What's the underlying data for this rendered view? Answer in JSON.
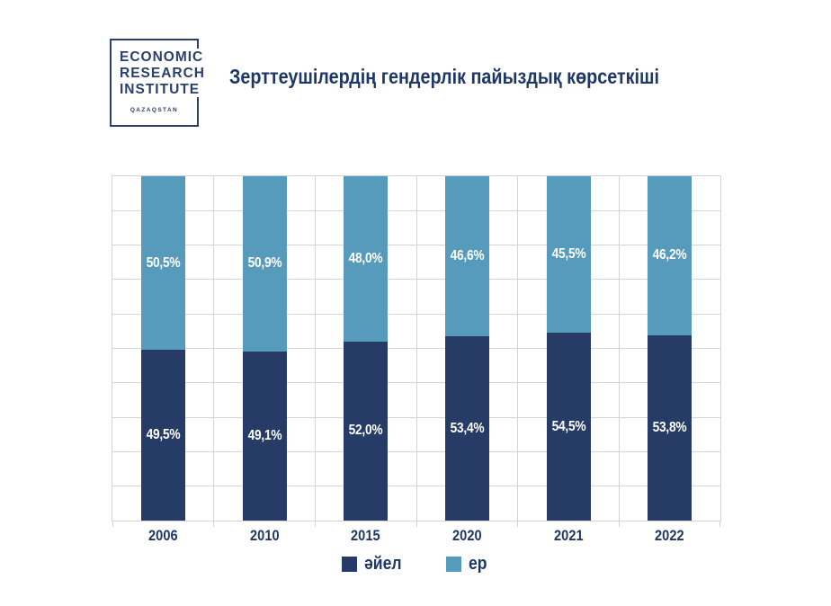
{
  "logo": {
    "lines": [
      "ECONOMIC",
      "RESEARCH",
      "INSTITUTE"
    ],
    "sublabel": "QAZAQSTAN",
    "color": "#2a3f6a"
  },
  "chart_data": {
    "type": "bar",
    "stacked": true,
    "title": "Зерттеушілердің гендерлік пайыздық көрсеткіші",
    "categories": [
      "2006",
      "2010",
      "2015",
      "2020",
      "2021",
      "2022"
    ],
    "series": [
      {
        "name": "әйел",
        "color": "#263c66",
        "values": [
          49.5,
          49.1,
          52.0,
          53.4,
          54.5,
          53.8
        ],
        "labels": [
          "49,5%",
          "49,1%",
          "52,0%",
          "53,4%",
          "54,5%",
          "53,8%"
        ]
      },
      {
        "name": "ер",
        "color": "#579bbc",
        "values": [
          50.5,
          50.9,
          48.0,
          46.6,
          45.5,
          46.2
        ],
        "labels": [
          "50,5%",
          "50,9%",
          "48,0%",
          "46,6%",
          "45,5%",
          "46,2%"
        ]
      }
    ],
    "ylim": [
      0,
      100
    ],
    "grid": {
      "horizontal_step_pct": 10,
      "vertical_at_category_boundaries": true,
      "gridline_color": "#d5d5d5"
    },
    "value_label_color": "#ffffff",
    "axis_text_color": "#1f3765",
    "title_color": "#1f3765",
    "legend_position": "bottom",
    "xlabel": "",
    "ylabel": ""
  }
}
